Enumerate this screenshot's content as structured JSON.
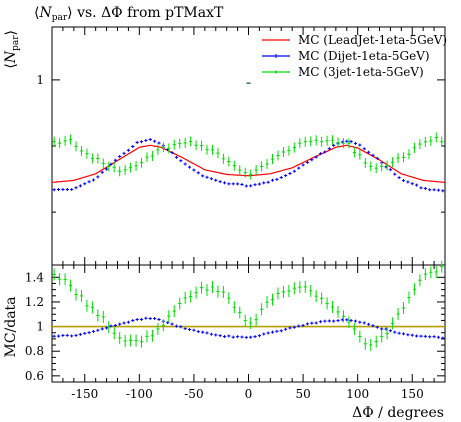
{
  "chart_data": {
    "type": "line",
    "title": "⟨Npar⟩ vs. ΔΦ from pTMaxT",
    "title_main": "N",
    "title_sub": "par",
    "title_rest": " vs. ΔΦ from pTMaxT",
    "xlabel": "ΔΦ / degrees",
    "ylabel_top": "⟨Npar⟩",
    "ylabel_top_main": "N",
    "ylabel_top_sub": "par",
    "ylabel_bottom": "MC/data",
    "xlim": [
      -180,
      180
    ],
    "top_ylim": [
      0.72,
      1.08
    ],
    "bottom_ylim": [
      0.55,
      1.5
    ],
    "x_ticks": [
      "-150",
      "-100",
      "-50",
      "0",
      "50",
      "100",
      "150"
    ],
    "x_tick_values": [
      -150,
      -100,
      -50,
      0,
      50,
      100,
      150
    ],
    "top_y_ticks": [
      "1"
    ],
    "top_y_tick_values": [
      1
    ],
    "bottom_y_ticks": [
      "0.6",
      "0.8",
      "1",
      "1.2",
      "1.4"
    ],
    "bottom_y_tick_values": [
      0.6,
      0.8,
      1.0,
      1.2,
      1.4
    ],
    "legend_position": "top-right",
    "reference_line": 1,
    "data_marker": {
      "x": 0,
      "y": 0.995
    },
    "series": [
      {
        "name": "MC (LeadJet-1eta-5GeV)",
        "color": "#ff0000",
        "style": "line",
        "x": [
          -180,
          -160,
          -140,
          -120,
          -100,
          -90,
          -80,
          -60,
          -40,
          -20,
          0,
          20,
          40,
          60,
          80,
          90,
          100,
          120,
          140,
          160,
          180
        ],
        "top": [
          0.845,
          0.848,
          0.858,
          0.878,
          0.898,
          0.901,
          0.898,
          0.882,
          0.864,
          0.857,
          0.855,
          0.858,
          0.867,
          0.883,
          0.898,
          0.901,
          0.897,
          0.879,
          0.858,
          0.848,
          0.845
        ]
      },
      {
        "name": "MC (Dijet-1eta-5GeV)",
        "color": "#0000ff",
        "style": "points",
        "x": [
          -180,
          -160,
          -140,
          -120,
          -100,
          -90,
          -80,
          -60,
          -40,
          -20,
          0,
          20,
          40,
          60,
          80,
          90,
          100,
          120,
          140,
          160,
          180
        ],
        "top": [
          0.833,
          0.835,
          0.85,
          0.882,
          0.907,
          0.909,
          0.903,
          0.875,
          0.853,
          0.844,
          0.84,
          0.846,
          0.859,
          0.882,
          0.902,
          0.907,
          0.904,
          0.878,
          0.849,
          0.836,
          0.832
        ],
        "ratio": [
          0.92,
          0.93,
          0.96,
          1.02,
          1.06,
          1.07,
          1.05,
          0.99,
          0.95,
          0.92,
          0.91,
          0.95,
          0.99,
          1.03,
          1.05,
          1.06,
          1.04,
          0.99,
          0.94,
          0.92,
          0.91
        ]
      },
      {
        "name": "MC (3jet-1eta-5GeV)",
        "color": "#00dd00",
        "style": "points",
        "x": [
          -180,
          -165,
          -150,
          -135,
          -120,
          -110,
          -100,
          -90,
          -80,
          -70,
          -50,
          -35,
          -20,
          -10,
          0,
          10,
          20,
          40,
          55,
          70,
          90,
          100,
          110,
          125,
          145,
          160,
          170,
          180
        ],
        "top": [
          0.905,
          0.91,
          0.888,
          0.877,
          0.864,
          0.865,
          0.875,
          0.886,
          0.894,
          0.9,
          0.905,
          0.895,
          0.878,
          0.865,
          0.855,
          0.864,
          0.88,
          0.896,
          0.908,
          0.908,
          0.905,
          0.888,
          0.87,
          0.867,
          0.887,
          0.905,
          0.912,
          0.905
        ],
        "ratio": [
          1.42,
          1.35,
          1.2,
          1.08,
          0.92,
          0.88,
          0.88,
          0.93,
          1.0,
          1.12,
          1.28,
          1.32,
          1.25,
          1.12,
          1.0,
          1.1,
          1.22,
          1.32,
          1.3,
          1.2,
          1.05,
          0.95,
          0.83,
          0.92,
          1.2,
          1.4,
          1.45,
          1.48
        ]
      }
    ]
  }
}
